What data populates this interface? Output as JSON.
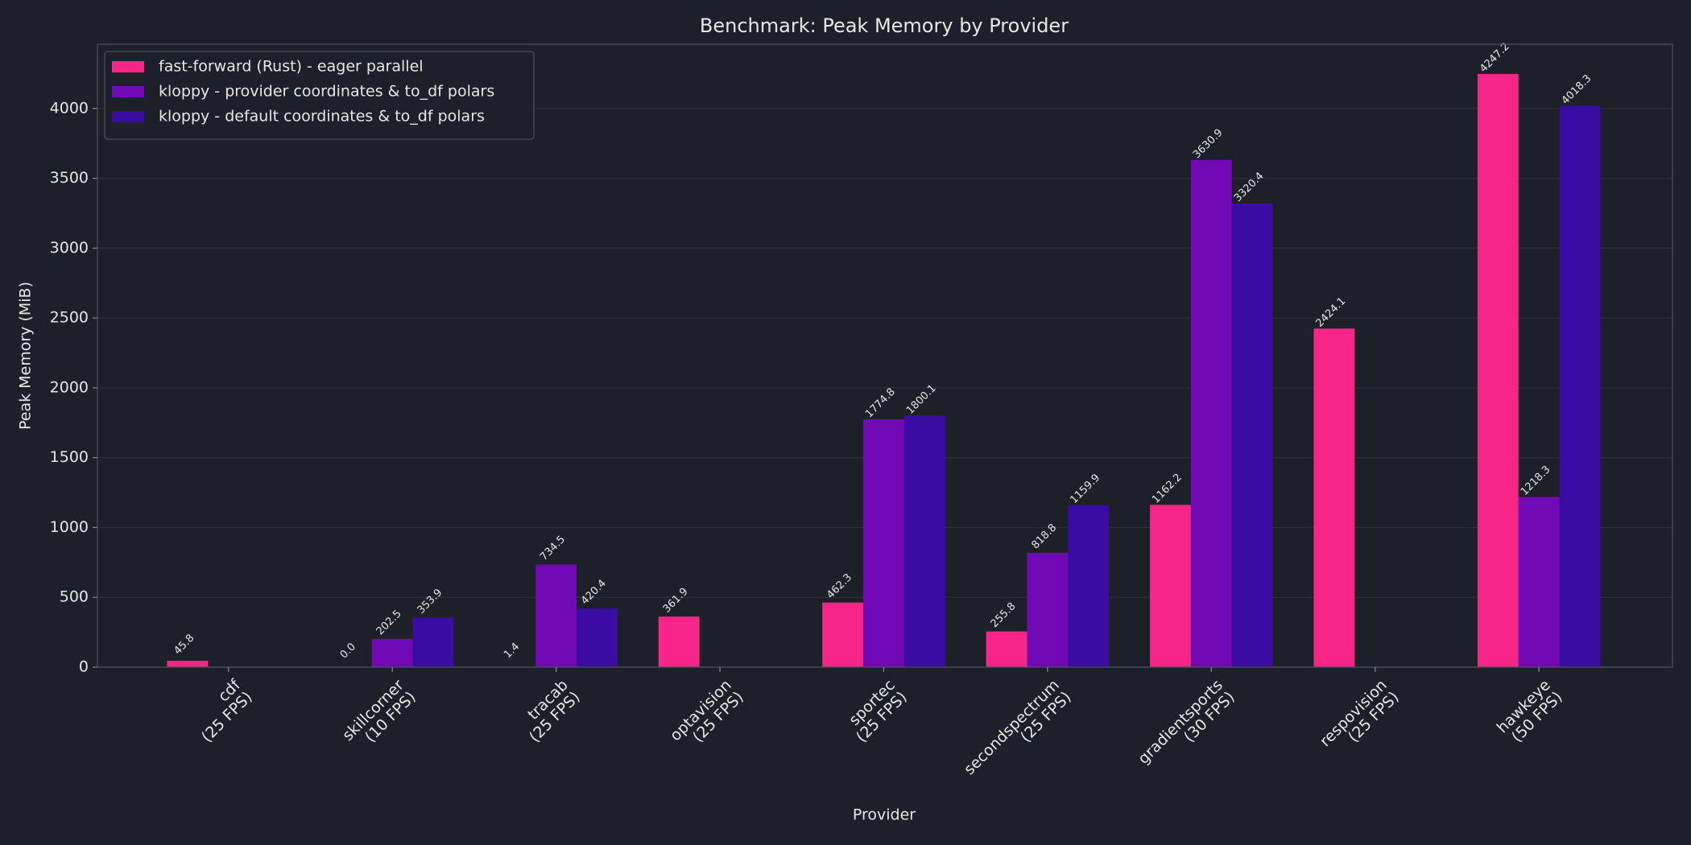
{
  "chart_data": {
    "type": "bar",
    "title": "Benchmark: Peak Memory by Provider",
    "x_label": "Provider",
    "y_label": "Peak Memory (MiB)",
    "categories": [
      "cdf\n(25 FPS)",
      "skillcorner\n(10 FPS)",
      "tracab\n(25 FPS)",
      "optavision\n(25 FPS)",
      "sportec\n(25 FPS)",
      "secondspectrum\n(25 FPS)",
      "gradientsports\n(30 FPS)",
      "respovision\n(25 FPS)",
      "hawkeye\n(50 FPS)"
    ],
    "series": [
      {
        "name": "fast-forward (Rust) - eager parallel",
        "color": "#f72585",
        "values": [
          45.8,
          0,
          1.4,
          361.9,
          462.3,
          255.8,
          1162.2,
          2424.1,
          4247.2
        ],
        "value_labels": [
          "45.8",
          "0.0",
          "1.4",
          "361.9",
          "462.3",
          "255.8",
          "1162.2",
          "2424.1",
          "4247.2"
        ]
      },
      {
        "name": "kloppy - provider coordinates & to_df polars",
        "color": "#7209b7",
        "values": [
          null,
          202.5,
          734.5,
          null,
          1774.8,
          818.8,
          3630.9,
          null,
          1218.3
        ],
        "value_labels": [
          null,
          "202.5",
          "734.5",
          null,
          "1774.8",
          "818.8",
          "3630.9",
          null,
          "1218.3"
        ]
      },
      {
        "name": "kloppy - default coordinates & to_df polars",
        "color": "#3a0ca3",
        "values": [
          null,
          353.9,
          420.4,
          null,
          1800.1,
          1159.9,
          3320.4,
          null,
          4018.3
        ],
        "value_labels": [
          null,
          "353.9",
          "420.4",
          null,
          "1800.1",
          "1159.9",
          "3320.4",
          null,
          "4018.3"
        ]
      }
    ],
    "ylim": [
      0,
      4459.6
    ],
    "yticks": [
      0,
      500,
      1000,
      1500,
      2000,
      2500,
      3000,
      3500,
      4000
    ],
    "grid": true,
    "legend": "upper left"
  }
}
